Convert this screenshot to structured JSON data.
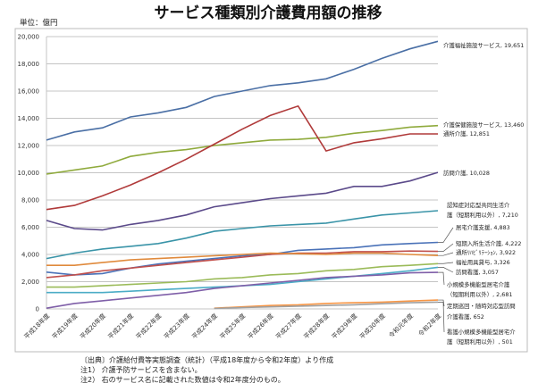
{
  "chart_data": {
    "type": "line",
    "title": "サービス種類別介護費用額の推移",
    "unit_label": "単位：億円",
    "ylim": [
      0,
      20000
    ],
    "yticks": [
      "0",
      "2,000",
      "4,000",
      "6,000",
      "8,000",
      "10,000",
      "12,000",
      "14,000",
      "16,000",
      "18,000",
      "20,000"
    ],
    "grid": true,
    "categories": [
      "平成18年度",
      "平成19年度",
      "平成20年度",
      "平成21年度",
      "平成22年度",
      "平成23年度",
      "平成24年度",
      "平成25年度",
      "平成26年度",
      "平成27年度",
      "平成28年度",
      "平成29年度",
      "平成30年度",
      "令和元年度",
      "令和2年度"
    ],
    "series": [
      {
        "name": "介護福祉施設サービス",
        "label": [
          "介護福祉施設サービス, 19,651"
        ],
        "color": "#4a6fa5",
        "values": [
          12400,
          13000,
          13300,
          14100,
          14400,
          14800,
          15600,
          16000,
          16400,
          16600,
          16900,
          17600,
          18400,
          19100,
          19651
        ]
      },
      {
        "name": "介護保健施設サービス",
        "label": [
          "介護保健施設サービス, 13,460"
        ],
        "color": "#8faa3c",
        "values": [
          9900,
          10200,
          10500,
          11200,
          11500,
          11700,
          12000,
          12200,
          12400,
          12450,
          12600,
          12900,
          13100,
          13350,
          13460
        ]
      },
      {
        "name": "通所介護",
        "label": [
          "通所介護, 12,851"
        ],
        "color": "#b03a3a",
        "values": [
          7300,
          7600,
          8300,
          9100,
          10000,
          11000,
          12100,
          13200,
          14200,
          14900,
          11600,
          12200,
          12500,
          12850,
          12851
        ]
      },
      {
        "name": "訪問介護",
        "label": [
          "訪問介護, 10,028"
        ],
        "color": "#5b4a8a",
        "values": [
          6500,
          5900,
          5800,
          6200,
          6500,
          6900,
          7500,
          7800,
          8100,
          8300,
          8500,
          9000,
          9000,
          9400,
          10028
        ]
      },
      {
        "name": "認知症対応型共同生活介護（短期利用以外）",
        "label": [
          "認知症対応型共同生活介",
          "護（短期利用以外）, 7,210"
        ],
        "color": "#3a94a8",
        "values": [
          3700,
          4100,
          4400,
          4600,
          4800,
          5200,
          5700,
          5900,
          6100,
          6200,
          6300,
          6600,
          6900,
          7050,
          7210
        ]
      },
      {
        "name": "居宅介護支援",
        "label": [
          "居宅介護支援, 4,883"
        ],
        "color": "#4a72b8",
        "values": [
          2700,
          2500,
          2600,
          3000,
          3300,
          3500,
          3700,
          3900,
          4000,
          4300,
          4400,
          4500,
          4700,
          4800,
          4883
        ]
      },
      {
        "name": "短期入所生活介護",
        "label": [
          "短期入所生活介護, 4,222"
        ],
        "color": "#c0504d",
        "values": [
          2300,
          2500,
          2800,
          3000,
          3200,
          3400,
          3600,
          3800,
          4000,
          4100,
          4100,
          4200,
          4200,
          4250,
          4222
        ]
      },
      {
        "name": "通所ﾘﾊﾋﾞﾘﾃｰｼｮﾝ",
        "label": [
          "通所ﾘﾊﾋﾞﾘﾃｰｼｮﾝ, 3,922"
        ],
        "color": "#e08a3c",
        "values": [
          3200,
          3200,
          3400,
          3600,
          3700,
          3800,
          3900,
          4000,
          4100,
          4050,
          4000,
          4100,
          4100,
          4000,
          3922
        ]
      },
      {
        "name": "福祉用具貸与",
        "label": [
          "福祉用具貸与, 3,326"
        ],
        "color": "#9bbb59",
        "values": [
          1600,
          1600,
          1700,
          1800,
          1900,
          2000,
          2200,
          2300,
          2500,
          2600,
          2800,
          2900,
          3100,
          3200,
          3326
        ]
      },
      {
        "name": "訪問看護",
        "label": [
          "訪問看護, 3,057"
        ],
        "color": "#4bacc6",
        "values": [
          1200,
          1200,
          1200,
          1300,
          1400,
          1500,
          1600,
          1700,
          1800,
          2000,
          2200,
          2400,
          2600,
          2800,
          3057
        ]
      },
      {
        "name": "小規模多機能型居宅介護（短期利用以外）",
        "label": [
          "小規模多機能型居宅介護",
          "（短期利用以外）, 2,681"
        ],
        "color": "#7f5fa8",
        "values": [
          50,
          400,
          600,
          800,
          1000,
          1200,
          1500,
          1700,
          1900,
          2100,
          2300,
          2400,
          2500,
          2650,
          2681
        ]
      },
      {
        "name": "定期巡回・随時対応型訪問介護看護",
        "label": [
          "定期巡回・随時対応型訪問",
          "介護看護, 652"
        ],
        "color": "#f79646",
        "values": [
          null,
          null,
          null,
          null,
          null,
          null,
          50,
          150,
          250,
          300,
          400,
          450,
          500,
          580,
          652
        ]
      },
      {
        "name": "看護小規模多機能型居宅介護（短期利用以外）",
        "label": [
          "看護小規模多機能型居宅介",
          "護（短期利用以外）, 501"
        ],
        "color": "#a0a0a0",
        "values": [
          null,
          null,
          null,
          null,
          null,
          null,
          30,
          100,
          150,
          200,
          250,
          300,
          380,
          450,
          501
        ]
      }
    ]
  },
  "notes": [
    "〔出典〕介護給付費等実態調査（統計）（平成18年度から令和2年度）より作成",
    "注1） 介護予防サービスを含まない。",
    "注2） 右のサービス名に記載された数値は令和2年度分のもの。"
  ]
}
